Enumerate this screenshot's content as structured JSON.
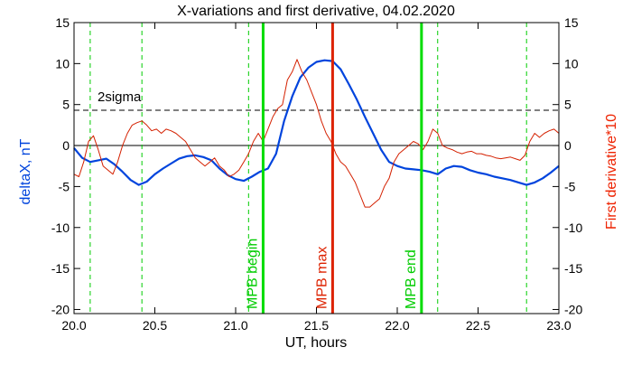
{
  "chart_data": {
    "type": "line",
    "title": "X-variations and first derivative, 04.02.2020",
    "xlabel": "UT, hours",
    "ylabel_left": "deltaX, nT",
    "ylabel_right": "First derivative*10",
    "xlim": [
      20.0,
      23.0
    ],
    "ylim": [
      -20.5,
      15
    ],
    "x_ticks": [
      "20.0",
      "20.5",
      "21.0",
      "21.5",
      "22.0",
      "22.5",
      "23.0"
    ],
    "y_ticks_left": [
      "15",
      "10",
      "5",
      "0",
      "-5",
      "-10",
      "-15",
      "-20"
    ],
    "y_ticks_right": [
      "15",
      "10",
      "5",
      "0",
      "-5",
      "-10",
      "-15",
      "-20"
    ],
    "colors": {
      "deltaX": "#0044dd",
      "derivative": "#d42000",
      "mpb_boundary": "#00dd00",
      "mpb_max": "#dd2200",
      "dashed_green": "#00cc00",
      "axis_label_left": "#0044dd",
      "axis_label_right": "#ee2200",
      "annot_green": "#00cc00",
      "annot_red": "#dd2200"
    },
    "sigma_level": 4.3,
    "sigma_label": "2sigma",
    "dashed_green_lines": [
      20.1,
      20.42,
      21.08,
      22.25,
      22.8
    ],
    "markers": [
      {
        "x": 21.17,
        "label": "MPB begin",
        "kind": "mpb_boundary"
      },
      {
        "x": 21.6,
        "label": "MPB max",
        "kind": "mpb_max"
      },
      {
        "x": 22.15,
        "label": "MPB end",
        "kind": "mpb_boundary"
      }
    ],
    "series": [
      {
        "key": "deltaX",
        "x": [
          20.0,
          20.05,
          20.1,
          20.15,
          20.2,
          20.25,
          20.3,
          20.35,
          20.4,
          20.45,
          20.5,
          20.55,
          20.6,
          20.65,
          20.7,
          20.75,
          20.8,
          20.85,
          20.9,
          20.95,
          21.0,
          21.05,
          21.1,
          21.15,
          21.2,
          21.25,
          21.3,
          21.35,
          21.4,
          21.45,
          21.5,
          21.55,
          21.6,
          21.65,
          21.7,
          21.75,
          21.8,
          21.85,
          21.9,
          21.95,
          22.0,
          22.05,
          22.1,
          22.15,
          22.2,
          22.25,
          22.3,
          22.35,
          22.4,
          22.45,
          22.5,
          22.55,
          22.6,
          22.65,
          22.7,
          22.75,
          22.8,
          22.85,
          22.9,
          22.95,
          23.0
        ],
        "values": [
          -0.3,
          -1.5,
          -2.0,
          -1.8,
          -1.6,
          -2.3,
          -3.2,
          -4.2,
          -4.8,
          -4.4,
          -3.5,
          -2.8,
          -2.2,
          -1.6,
          -1.3,
          -1.2,
          -1.4,
          -1.8,
          -2.8,
          -3.6,
          -4.1,
          -4.3,
          -3.8,
          -3.2,
          -2.8,
          -1.0,
          3.0,
          6.0,
          8.3,
          9.5,
          10.2,
          10.4,
          10.3,
          9.3,
          7.5,
          5.6,
          3.5,
          1.5,
          -0.5,
          -2.0,
          -2.5,
          -2.8,
          -2.9,
          -3.0,
          -3.2,
          -3.5,
          -2.8,
          -2.5,
          -2.6,
          -3.0,
          -3.3,
          -3.5,
          -3.8,
          -4.0,
          -4.2,
          -4.5,
          -4.8,
          -4.5,
          -4.0,
          -3.3,
          -2.5
        ]
      },
      {
        "key": "derivative",
        "x": [
          20.0,
          20.03,
          20.06,
          20.09,
          20.12,
          20.15,
          20.18,
          20.21,
          20.24,
          20.27,
          20.3,
          20.33,
          20.36,
          20.39,
          20.42,
          20.45,
          20.48,
          20.51,
          20.54,
          20.57,
          20.6,
          20.63,
          20.66,
          20.69,
          20.72,
          20.75,
          20.78,
          20.81,
          20.84,
          20.87,
          20.9,
          20.93,
          20.96,
          20.99,
          21.02,
          21.05,
          21.08,
          21.11,
          21.14,
          21.17,
          21.2,
          21.23,
          21.26,
          21.29,
          21.32,
          21.35,
          21.38,
          21.41,
          21.44,
          21.47,
          21.5,
          21.53,
          21.56,
          21.59,
          21.62,
          21.65,
          21.68,
          21.71,
          21.74,
          21.77,
          21.8,
          21.83,
          21.86,
          21.89,
          21.92,
          21.95,
          21.98,
          22.01,
          22.04,
          22.07,
          22.1,
          22.13,
          22.16,
          22.19,
          22.22,
          22.25,
          22.28,
          22.31,
          22.34,
          22.37,
          22.4,
          22.43,
          22.46,
          22.49,
          22.52,
          22.55,
          22.58,
          22.61,
          22.64,
          22.67,
          22.7,
          22.73,
          22.76,
          22.79,
          22.82,
          22.85,
          22.88,
          22.91,
          22.94,
          22.97,
          23.0
        ],
        "values": [
          -3.5,
          -3.8,
          -2.0,
          0.5,
          1.2,
          -0.5,
          -2.5,
          -3.0,
          -3.5,
          -2.0,
          0.0,
          1.5,
          2.5,
          2.8,
          3.0,
          2.5,
          1.8,
          2.0,
          1.5,
          2.0,
          1.8,
          1.5,
          1.0,
          0.5,
          -0.5,
          -1.5,
          -2.0,
          -2.5,
          -2.0,
          -1.5,
          -2.5,
          -3.0,
          -3.8,
          -3.5,
          -3.0,
          -2.0,
          -1.0,
          0.5,
          1.5,
          0.5,
          2.0,
          3.5,
          4.5,
          5.0,
          8.0,
          9.0,
          10.5,
          9.0,
          8.0,
          6.5,
          5.0,
          3.0,
          1.5,
          0.5,
          -1.0,
          -2.0,
          -2.5,
          -3.5,
          -4.5,
          -6.0,
          -7.5,
          -7.5,
          -7.0,
          -6.5,
          -5.0,
          -4.0,
          -2.0,
          -1.0,
          -0.5,
          0.0,
          0.5,
          0.2,
          -0.5,
          0.5,
          2.0,
          1.5,
          0.0,
          -0.3,
          -0.5,
          -0.8,
          -1.0,
          -0.8,
          -0.7,
          -1.0,
          -1.0,
          -1.2,
          -1.3,
          -1.5,
          -1.6,
          -1.5,
          -1.4,
          -1.6,
          -1.8,
          -1.2,
          0.5,
          1.5,
          1.0,
          1.5,
          1.8,
          2.0,
          1.5
        ]
      }
    ]
  }
}
